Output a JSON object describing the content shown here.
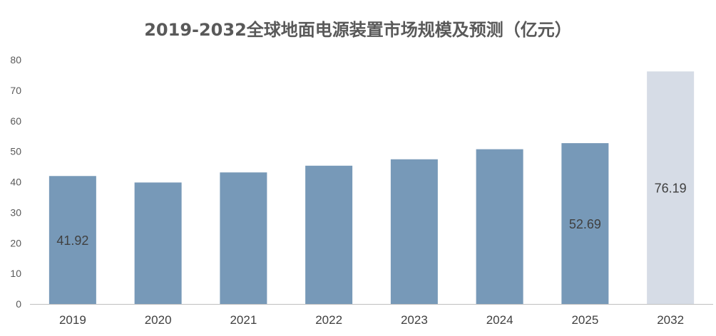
{
  "chart_data": {
    "type": "bar",
    "title": "2019-2032全球地面电源装置市场规模及预测（亿元）",
    "xlabel": "",
    "ylabel": "",
    "categories": [
      "2019",
      "2020",
      "2021",
      "2022",
      "2023",
      "2024",
      "2025",
      "2032"
    ],
    "values": [
      41.92,
      39.8,
      43.1,
      45.3,
      47.4,
      50.7,
      52.69,
      76.19
    ],
    "data_labels": [
      "41.92",
      "",
      "",
      "",
      "",
      "",
      "52.69",
      "76.19"
    ],
    "ylim": [
      0,
      80
    ],
    "yticks": [
      0,
      10,
      20,
      30,
      40,
      50,
      60,
      70,
      80
    ],
    "grid": false,
    "legend": "none",
    "colors": {
      "actual": "#7799b8",
      "forecast": "#d6dce6",
      "axis": "#bfbfbf"
    },
    "forecast_categories": [
      "2032"
    ]
  }
}
